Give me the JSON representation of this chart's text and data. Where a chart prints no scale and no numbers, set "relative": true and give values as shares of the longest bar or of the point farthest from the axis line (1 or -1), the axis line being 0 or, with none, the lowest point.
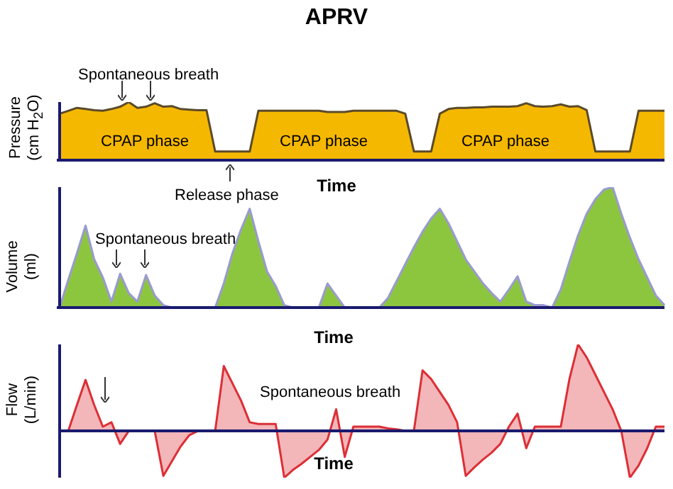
{
  "chart_data": [
    {
      "type": "area",
      "title": "APRV",
      "xlabel": "Time",
      "ylabel": "Pressure\n(cm H$_{2}$O)",
      "relative": true,
      "grid": false,
      "legend": false,
      "annotations": [
        "Spontaneous breath",
        "CPAP phase",
        "CPAP phase",
        "CPAP phase",
        "Release phase"
      ],
      "categories": [
        null,
        null,
        null,
        null,
        null,
        null,
        null,
        null,
        null,
        null,
        null,
        null,
        null,
        null,
        null,
        null,
        null,
        null,
        null,
        null,
        null,
        null,
        null,
        null,
        null,
        null,
        null,
        null,
        null,
        null,
        null,
        null,
        null,
        null,
        null,
        null,
        null,
        null,
        null,
        null,
        null,
        null,
        null,
        null,
        null,
        null,
        null,
        null,
        null,
        null,
        null,
        null,
        null,
        null,
        null,
        null,
        null,
        null,
        null,
        null,
        null,
        null,
        null,
        null,
        null,
        null,
        null,
        null,
        null,
        null,
        null
      ],
      "color": "#f5b800",
      "values": [
        0.8,
        0.85,
        0.9,
        0.88,
        0.86,
        0.85,
        0.88,
        0.92,
        1.0,
        0.9,
        0.92,
        0.98,
        0.92,
        0.93,
        0.88,
        0.87,
        0.86,
        0.86,
        0.15,
        0.15,
        0.15,
        0.15,
        0.15,
        0.85,
        0.85,
        0.85,
        0.85,
        0.85,
        0.85,
        0.85,
        0.85,
        0.83,
        0.83,
        0.83,
        0.85,
        0.85,
        0.85,
        0.85,
        0.85,
        0.85,
        0.8,
        0.15,
        0.15,
        0.15,
        0.8,
        0.88,
        0.9,
        0.9,
        0.91,
        0.91,
        0.92,
        0.92,
        0.92,
        0.93,
        0.98,
        0.93,
        0.92,
        0.93,
        0.96,
        0.92,
        0.93,
        0.86,
        0.15,
        0.15,
        0.15,
        0.15,
        0.15,
        0.85,
        0.85,
        0.85,
        0.85
      ]
    },
    {
      "type": "area",
      "xlabel": "Time",
      "ylabel": "Volume\n(ml)",
      "relative": true,
      "grid": false,
      "legend": false,
      "annotations": [
        "Spontaneous breath"
      ],
      "categories": [
        null,
        null,
        null,
        null,
        null,
        null,
        null,
        null,
        null,
        null,
        null,
        null,
        null,
        null,
        null,
        null,
        null,
        null,
        null,
        null,
        null,
        null,
        null,
        null,
        null,
        null,
        null,
        null,
        null,
        null,
        null,
        null,
        null,
        null,
        null,
        null,
        null,
        null,
        null,
        null,
        null,
        null,
        null,
        null,
        null,
        null,
        null,
        null,
        null,
        null,
        null,
        null,
        null,
        null,
        null,
        null,
        null,
        null,
        null,
        null,
        null,
        null,
        null,
        null,
        null,
        null,
        null,
        null,
        null,
        null,
        null
      ],
      "color": "#8cc63f",
      "values": [
        0,
        0.23,
        0.45,
        0.68,
        0.4,
        0.25,
        0.05,
        0.28,
        0.12,
        0.05,
        0.27,
        0.1,
        0.02,
        0,
        0,
        0,
        0,
        0,
        0,
        0.2,
        0.45,
        0.65,
        0.82,
        0.55,
        0.3,
        0.18,
        0.02,
        0,
        0,
        0,
        0,
        0.2,
        0.1,
        0,
        0,
        0,
        0,
        0,
        0.08,
        0.22,
        0.36,
        0.5,
        0.63,
        0.74,
        0.82,
        0.7,
        0.55,
        0.4,
        0.3,
        0.2,
        0.12,
        0.05,
        0.15,
        0.26,
        0.05,
        0.02,
        0.02,
        0,
        0.15,
        0.38,
        0.6,
        0.78,
        0.9,
        0.98,
        1.0,
        0.78,
        0.58,
        0.4,
        0.25,
        0.1,
        0.02
      ]
    },
    {
      "type": "area",
      "xlabel": "Time",
      "ylabel": "Flow\n(L/min)",
      "relative": true,
      "grid": false,
      "ref_lines": [
        {
          "axis": "y",
          "value": 0,
          "color": "#1a1a6e"
        }
      ],
      "legend": false,
      "annotations": [
        "Spontaneous breath"
      ],
      "categories": [
        null,
        null,
        null,
        null,
        null,
        null,
        null,
        null,
        null,
        null,
        null,
        null,
        null,
        null,
        null,
        null,
        null,
        null,
        null,
        null,
        null,
        null,
        null,
        null,
        null,
        null,
        null,
        null,
        null,
        null,
        null,
        null,
        null,
        null,
        null,
        null,
        null,
        null,
        null,
        null,
        null,
        null,
        null,
        null,
        null,
        null,
        null,
        null,
        null,
        null,
        null,
        null,
        null,
        null,
        null,
        null,
        null,
        null,
        null,
        null,
        null,
        null,
        null,
        null,
        null,
        null,
        null,
        null,
        null,
        null,
        null
      ],
      "color": "#dc2f36",
      "values": [
        0,
        0,
        0.3,
        0.59,
        0.3,
        0.05,
        0.1,
        -0.15,
        0,
        0,
        0,
        0,
        -0.52,
        -0.35,
        -0.18,
        -0.05,
        0,
        0,
        0,
        0.75,
        0.55,
        0.35,
        0.1,
        0.08,
        0.08,
        0.08,
        -0.54,
        -0.45,
        -0.38,
        -0.3,
        -0.22,
        -0.1,
        0.25,
        -0.3,
        0.05,
        0.05,
        0.05,
        0.05,
        0.03,
        0.02,
        0,
        0,
        0.7,
        0.6,
        0.45,
        0.3,
        0.1,
        -0.52,
        -0.42,
        -0.33,
        -0.25,
        -0.15,
        0.05,
        0.2,
        -0.2,
        0.05,
        0.05,
        0.05,
        0.05,
        0.6,
        1.0,
        0.85,
        0.65,
        0.45,
        0.25,
        0,
        -0.54,
        -0.4,
        -0.2,
        0.05,
        0.05
      ]
    }
  ]
}
